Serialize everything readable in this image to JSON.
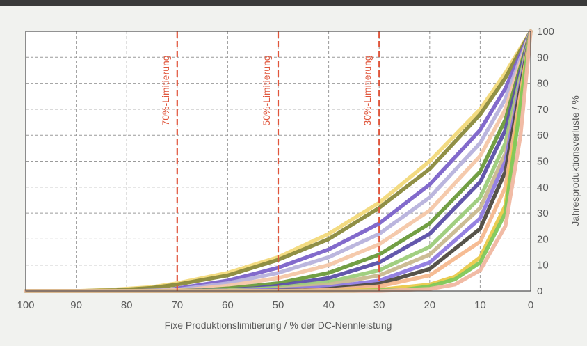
{
  "chart_data": {
    "type": "line",
    "xlabel": "Fixe Produktionslimitierung / % der DC-Nennleistung",
    "ylabel": "Jahresproduktionsverluste / %",
    "x_ticks": [
      "100",
      "90",
      "80",
      "70",
      "60",
      "50",
      "40",
      "30",
      "20",
      "10",
      "0"
    ],
    "y_ticks": [
      "0",
      "10",
      "20",
      "30",
      "40",
      "50",
      "60",
      "70",
      "80",
      "90",
      "100"
    ],
    "xlim": [
      100,
      0
    ],
    "ylim": [
      0,
      100
    ],
    "x_reversed": true,
    "grid": true,
    "limits": [
      {
        "x": 70,
        "label": "70%-Limitierung"
      },
      {
        "x": 50,
        "label": "50%-Limitierung"
      },
      {
        "x": 30,
        "label": "30%-Limitierung"
      }
    ],
    "limit_color": "#e0563c",
    "series": [
      {
        "color": "#f2d97a",
        "x": [
          100,
          90,
          83,
          75,
          70,
          60,
          50,
          40,
          30,
          20,
          10,
          5,
          0
        ],
        "y": [
          0,
          0,
          0.5,
          1.5,
          3,
          7,
          13,
          22,
          34,
          50,
          70,
          84,
          100
        ]
      },
      {
        "color": "#8a8a3c",
        "x": [
          100,
          90,
          82,
          75,
          70,
          60,
          50,
          40,
          30,
          20,
          10,
          5,
          0
        ],
        "y": [
          0,
          0,
          0.3,
          1.2,
          2.5,
          6,
          12,
          20,
          32,
          47,
          68,
          82,
          100
        ]
      },
      {
        "color": "#7b62c9",
        "x": [
          100,
          80,
          72,
          70,
          60,
          50,
          40,
          30,
          20,
          10,
          5,
          0
        ],
        "y": [
          0,
          0,
          0.3,
          1,
          4,
          9,
          16,
          26,
          41,
          62,
          78,
          100
        ]
      },
      {
        "color": "#b7b2dc",
        "x": [
          100,
          78,
          70,
          60,
          50,
          40,
          30,
          20,
          10,
          5,
          0
        ],
        "y": [
          0,
          0,
          0.5,
          3,
          7,
          13,
          22,
          36,
          57,
          74,
          100
        ]
      },
      {
        "color": "#f4c7a8",
        "x": [
          100,
          75,
          68,
          60,
          50,
          40,
          30,
          20,
          10,
          5,
          0
        ],
        "y": [
          0,
          0,
          0.5,
          2,
          5,
          10,
          18,
          31,
          52,
          70,
          100
        ]
      },
      {
        "color": "#6a9a3a",
        "x": [
          100,
          72,
          65,
          60,
          50,
          40,
          30,
          20,
          10,
          5,
          0
        ],
        "y": [
          0,
          0,
          0.3,
          1,
          3,
          7,
          14,
          26,
          46,
          66,
          100
        ]
      },
      {
        "color": "#5b4fa8",
        "x": [
          100,
          70,
          62,
          55,
          50,
          40,
          30,
          20,
          10,
          5,
          0
        ],
        "y": [
          0,
          0,
          0.3,
          1,
          2,
          5,
          11,
          22,
          42,
          62,
          100
        ]
      },
      {
        "color": "#9ccc7a",
        "x": [
          100,
          68,
          60,
          50,
          40,
          30,
          20,
          10,
          5,
          0
        ],
        "y": [
          0,
          0,
          0.3,
          1.2,
          3.5,
          8,
          17,
          36,
          57,
          100
        ]
      },
      {
        "color": "#c9b98f",
        "x": [
          100,
          65,
          55,
          50,
          40,
          30,
          20,
          10,
          5,
          0
        ],
        "y": [
          0,
          0,
          0.3,
          0.8,
          2.5,
          6,
          14,
          32,
          53,
          100
        ]
      },
      {
        "color": "#8f7ae0",
        "x": [
          100,
          60,
          50,
          40,
          30,
          20,
          10,
          5,
          0
        ],
        "y": [
          0,
          0,
          0.5,
          1.5,
          4,
          11,
          28,
          50,
          100
        ]
      },
      {
        "color": "#4e4a40",
        "x": [
          100,
          55,
          45,
          40,
          30,
          20,
          10,
          5,
          0
        ],
        "y": [
          0,
          0,
          0.3,
          0.8,
          2.8,
          8.5,
          24,
          46,
          100
        ]
      },
      {
        "color": "#f6b88e",
        "x": [
          100,
          50,
          40,
          30,
          20,
          10,
          5,
          0
        ],
        "y": [
          0,
          0,
          0.4,
          1.8,
          6,
          19,
          40,
          100
        ]
      },
      {
        "color": "#e9c94a",
        "x": [
          100,
          40,
          30,
          20,
          15,
          10,
          5,
          0
        ],
        "y": [
          0,
          0,
          0.5,
          2.5,
          5.5,
          13,
          33,
          100
        ]
      },
      {
        "color": "#7fc85a",
        "x": [
          100,
          35,
          25,
          20,
          15,
          10,
          5,
          0
        ],
        "y": [
          0,
          0,
          0.5,
          1.8,
          4.5,
          11,
          30,
          100
        ]
      },
      {
        "color": "#f0b7a0",
        "x": [
          100,
          30,
          20,
          15,
          10,
          5,
          2,
          0
        ],
        "y": [
          0,
          0,
          0.8,
          2.5,
          8,
          25,
          60,
          100
        ]
      }
    ]
  }
}
